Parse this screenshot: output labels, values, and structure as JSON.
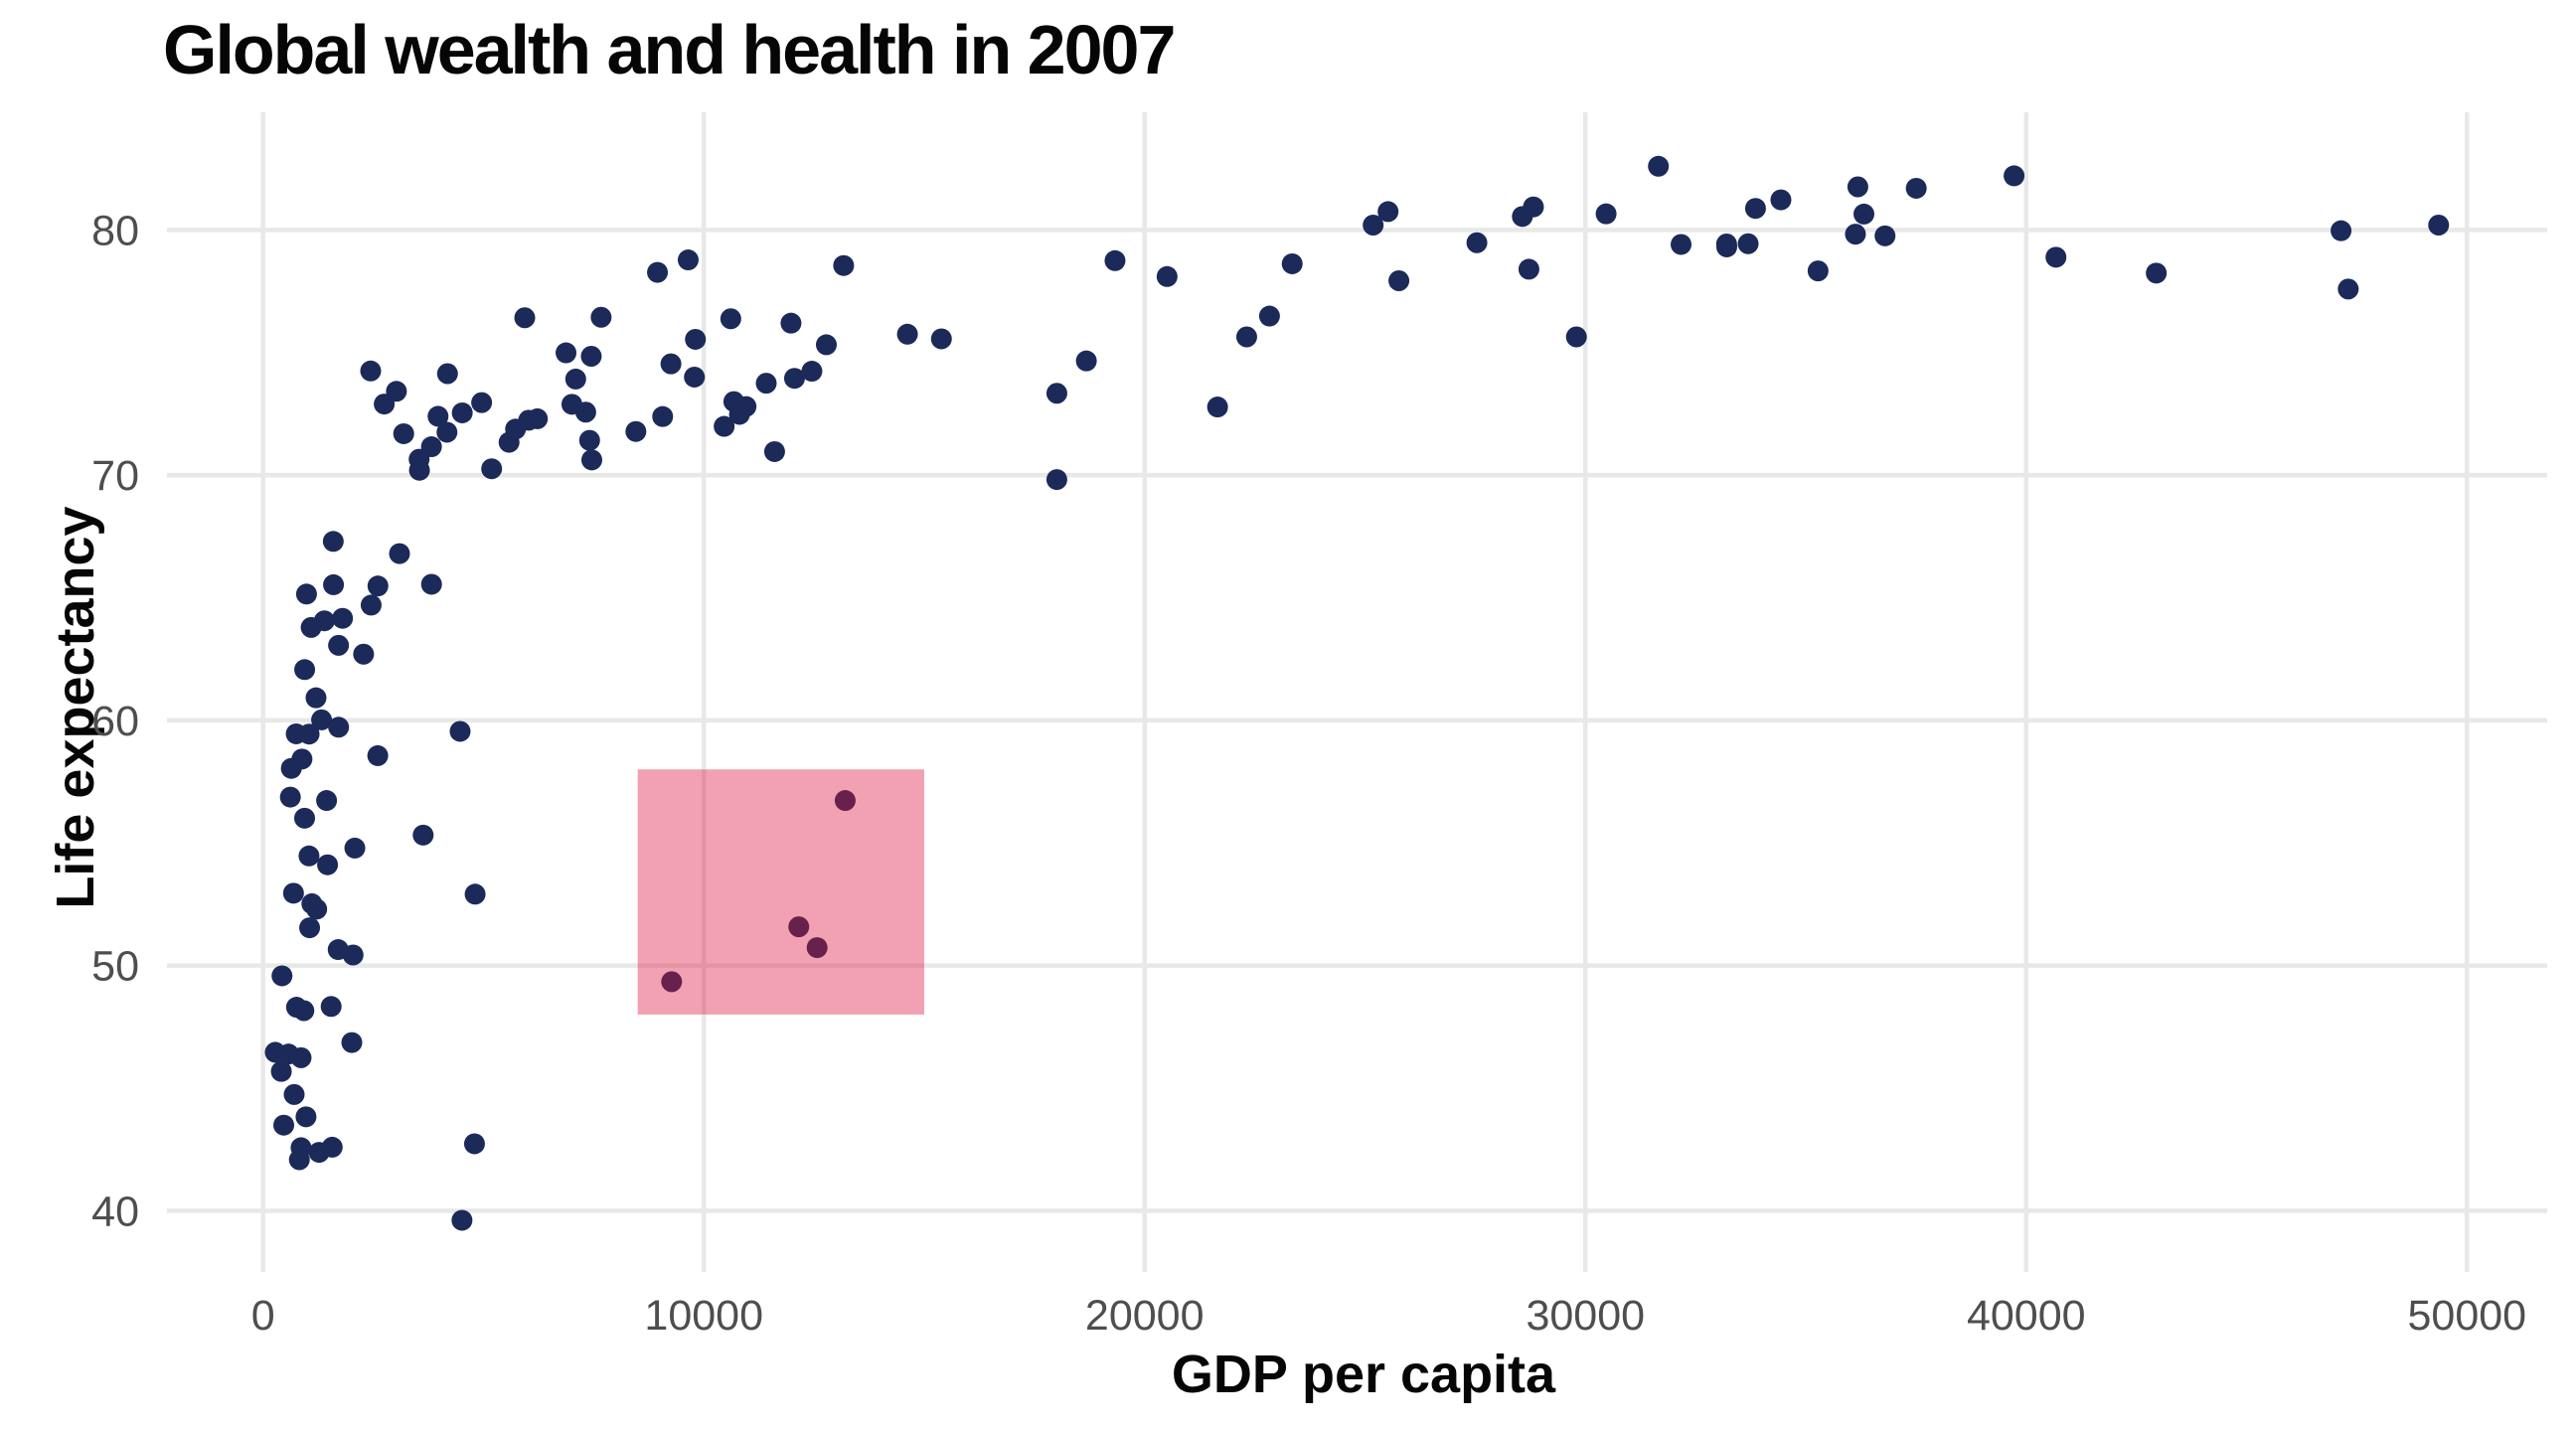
{
  "chart": {
    "title": "Global wealth and health in 2007",
    "xlabel": "GDP per capita",
    "ylabel": "Life expectancy"
  },
  "chart_data": {
    "type": "scatter",
    "title": "Global wealth and health in 2007",
    "xlabel": "GDP per capita",
    "ylabel": "Life expectancy",
    "x_ticks": [
      0,
      10000,
      20000,
      30000,
      40000,
      50000
    ],
    "y_ticks": [
      40,
      50,
      60,
      70,
      80
    ],
    "xlim": [
      -2180,
      51820
    ],
    "ylim": [
      37.5,
      84.8
    ],
    "grid": true,
    "legend": "none",
    "background_color": "#ffffff",
    "gridline_color": "#e8e8e8",
    "gridline_width": 4.5,
    "tick_label_color": "#4e4e4e",
    "point_color": "#1b2a59",
    "point_radius_px": 10.5,
    "annotation_rect": {
      "x_range": [
        8500,
        15000
      ],
      "y_range": [
        48,
        58
      ],
      "fill": "#dc143c",
      "opacity": 0.4,
      "drawn_above_points": true
    },
    "points": [
      [
        974.6,
        43.83
      ],
      [
        5937.0,
        76.42
      ],
      [
        6223.4,
        72.3
      ],
      [
        4797.2,
        42.73
      ],
      [
        12779.4,
        75.32
      ],
      [
        34435.4,
        81.23
      ],
      [
        36126.5,
        79.83
      ],
      [
        29796.0,
        75.64
      ],
      [
        1391.3,
        64.06
      ],
      [
        33692.6,
        79.44
      ],
      [
        1441.3,
        56.73
      ],
      [
        3822.1,
        65.55
      ],
      [
        7446.3,
        74.85
      ],
      [
        12569.9,
        50.73
      ],
      [
        9065.8,
        72.39
      ],
      [
        10680.8,
        73.0
      ],
      [
        1217.0,
        52.3
      ],
      [
        430.1,
        49.58
      ],
      [
        1713.8,
        59.72
      ],
      [
        2042.1,
        50.43
      ],
      [
        36319.2,
        80.65
      ],
      [
        706.0,
        44.74
      ],
      [
        1704.1,
        50.65
      ],
      [
        13171.6,
        78.55
      ],
      [
        4959.1,
        72.96
      ],
      [
        7006.6,
        72.89
      ],
      [
        986.1,
        65.15
      ],
      [
        277.6,
        46.46
      ],
      [
        3632.6,
        55.32
      ],
      [
        9645.1,
        78.78
      ],
      [
        1544.8,
        48.33
      ],
      [
        14619.2,
        75.75
      ],
      [
        8948.1,
        78.27
      ],
      [
        22833.3,
        76.49
      ],
      [
        35278.4,
        78.33
      ],
      [
        2082.5,
        54.79
      ],
      [
        6025.4,
        72.24
      ],
      [
        6873.3,
        74.99
      ],
      [
        5581.2,
        71.34
      ],
      [
        5728.4,
        71.88
      ],
      [
        12154.1,
        51.58
      ],
      [
        641.4,
        58.04
      ],
      [
        690.8,
        52.95
      ],
      [
        33207.1,
        79.31
      ],
      [
        30470.0,
        80.66
      ],
      [
        13206.5,
        56.73
      ],
      [
        752.7,
        59.45
      ],
      [
        32170.4,
        79.41
      ],
      [
        1327.6,
        60.02
      ],
      [
        27538.4,
        79.48
      ],
      [
        5186.1,
        70.26
      ],
      [
        942.7,
        56.01
      ],
      [
        579.2,
        46.39
      ],
      [
        1201.6,
        60.92
      ],
      [
        3548.3,
        70.2
      ],
      [
        39725.0,
        82.21
      ],
      [
        18008.9,
        73.34
      ],
      [
        36180.8,
        81.76
      ],
      [
        2452.2,
        64.7
      ],
      [
        3540.7,
        70.65
      ],
      [
        11605.7,
        70.96
      ],
      [
        4471.1,
        59.55
      ],
      [
        40676.0,
        78.89
      ],
      [
        25523.3,
        80.75
      ],
      [
        28569.7,
        80.55
      ],
      [
        7320.9,
        72.57
      ],
      [
        31656.1,
        82.6
      ],
      [
        4519.5,
        72.54
      ],
      [
        1463.2,
        54.11
      ],
      [
        1593.1,
        67.3
      ],
      [
        23348.1,
        78.62
      ],
      [
        47307.0,
        77.59
      ],
      [
        10461.1,
        71.99
      ],
      [
        1569.3,
        42.59
      ],
      [
        414.5,
        45.68
      ],
      [
        12057.5,
        73.95
      ],
      [
        1044.8,
        59.44
      ],
      [
        759.3,
        48.3
      ],
      [
        12451.7,
        74.24
      ],
      [
        1042.6,
        54.47
      ],
      [
        1803.2,
        64.16
      ],
      [
        10957.0,
        72.8
      ],
      [
        11977.6,
        76.2
      ],
      [
        3095.8,
        66.8
      ],
      [
        9253.9,
        74.54
      ],
      [
        3820.2,
        71.16
      ],
      [
        823.7,
        42.08
      ],
      [
        944.0,
        62.07
      ],
      [
        4811.1,
        52.91
      ],
      [
        1091.4,
        63.79
      ],
      [
        36797.9,
        79.76
      ],
      [
        25185.0,
        80.2
      ],
      [
        2749.3,
        72.9
      ],
      [
        619.7,
        56.87
      ],
      [
        2014.0,
        46.86
      ],
      [
        49357.2,
        80.2
      ],
      [
        22316.2,
        75.64
      ],
      [
        2605.9,
        65.48
      ],
      [
        9809.2,
        75.54
      ],
      [
        4172.8,
        71.75
      ],
      [
        7408.9,
        71.42
      ],
      [
        3190.5,
        71.69
      ],
      [
        15389.9,
        75.56
      ],
      [
        20509.6,
        78.1
      ],
      [
        19328.7,
        78.75
      ],
      [
        7670.1,
        76.44
      ],
      [
        10808.5,
        72.48
      ],
      [
        863.1,
        46.24
      ],
      [
        1598.4,
        65.53
      ],
      [
        21654.8,
        72.78
      ],
      [
        1712.5,
        63.06
      ],
      [
        9786.5,
        74.0
      ],
      [
        862.5,
        42.57
      ],
      [
        47143.2,
        79.97
      ],
      [
        18678.3,
        74.66
      ],
      [
        25768.3,
        77.93
      ],
      [
        926.1,
        48.16
      ],
      [
        9269.7,
        49.34
      ],
      [
        28821.1,
        80.94
      ],
      [
        3970.1,
        72.4
      ],
      [
        2602.4,
        58.56
      ],
      [
        4513.5,
        39.61
      ],
      [
        33859.7,
        80.88
      ],
      [
        37506.4,
        81.7
      ],
      [
        4184.5,
        74.14
      ],
      [
        28718.3,
        78.4
      ],
      [
        1107.5,
        52.52
      ],
      [
        7458.4,
        70.62
      ],
      [
        883.0,
        58.42
      ],
      [
        18008.5,
        69.82
      ],
      [
        7092.9,
        73.92
      ],
      [
        8458.3,
        71.78
      ],
      [
        1056.4,
        51.54
      ],
      [
        33203.3,
        79.43
      ],
      [
        42951.7,
        78.24
      ],
      [
        10611.5,
        76.38
      ],
      [
        11415.8,
        73.75
      ],
      [
        2441.6,
        74.25
      ],
      [
        3025.3,
        73.42
      ],
      [
        2280.8,
        62.7
      ],
      [
        1271.7,
        42.38
      ],
      [
        469.7,
        43.49
      ]
    ]
  }
}
